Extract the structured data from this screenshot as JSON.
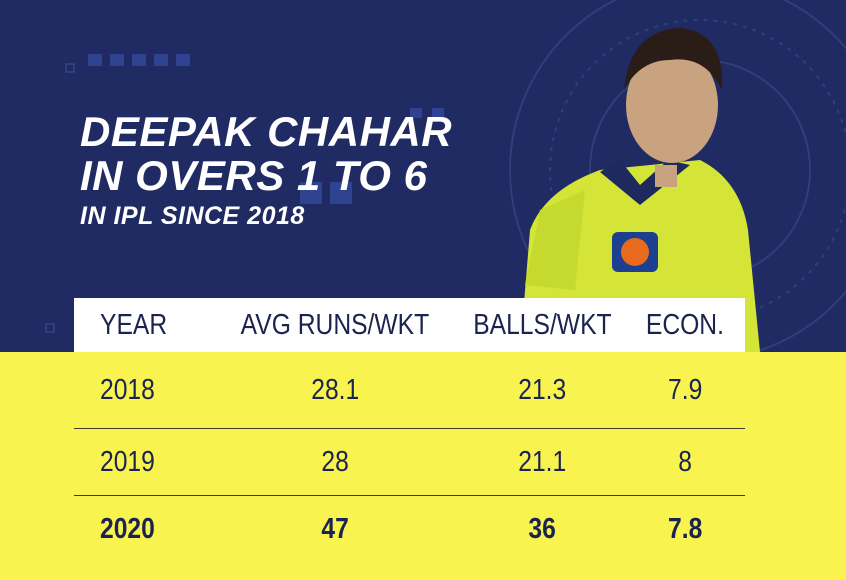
{
  "header": {
    "title_lines": [
      "DEEPAK CHAHAR",
      "IN OVERS 1 TO 6"
    ],
    "subtitle": "IN IPL SINCE 2018"
  },
  "table": {
    "columns": [
      "YEAR",
      "AVG RUNS/WKT",
      "BALLS/WKT",
      "ECON."
    ],
    "rows": [
      [
        "2018",
        "28.1",
        "21.3",
        "7.9"
      ],
      [
        "2019",
        "28",
        "21.1",
        "8"
      ],
      [
        "2020",
        "47",
        "36",
        "7.8"
      ]
    ]
  }
}
